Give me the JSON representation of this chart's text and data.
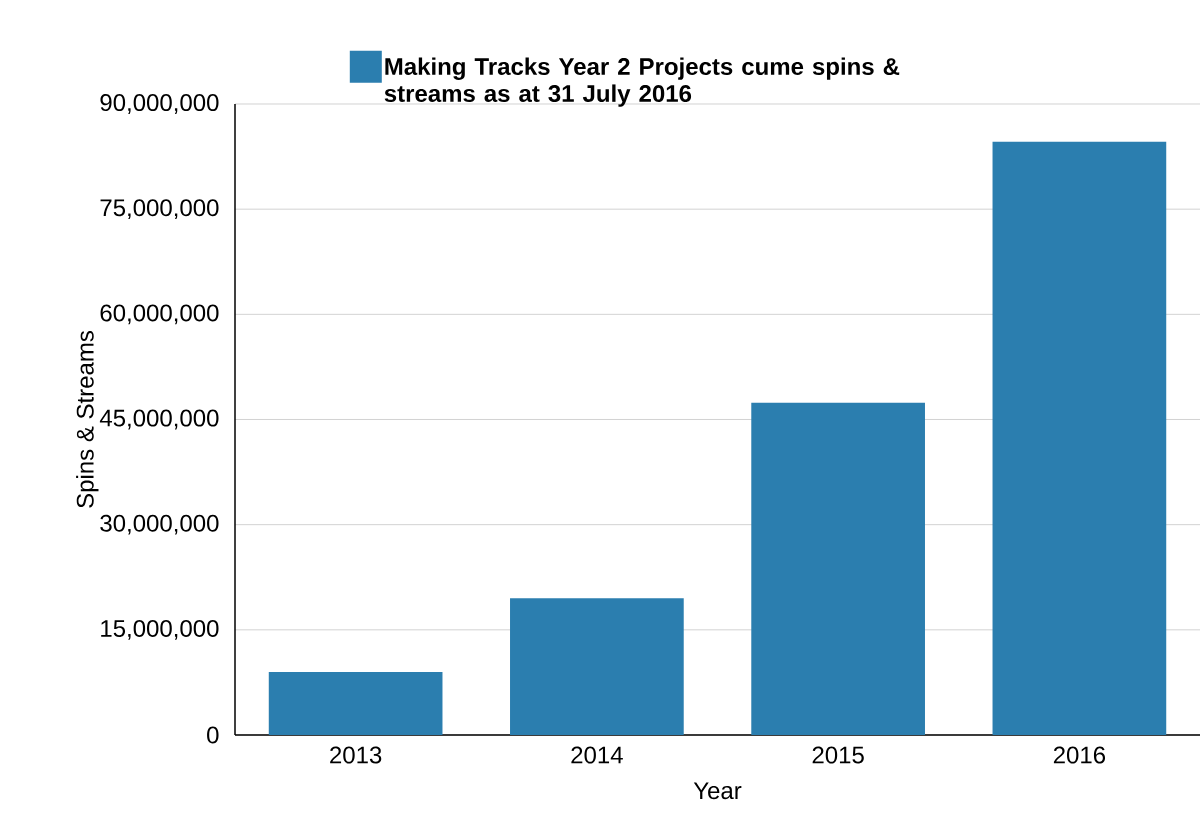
{
  "chart_data": {
    "type": "bar",
    "xlabel": "Year",
    "ylabel": "Spins & Streams",
    "categories": [
      "2013",
      "2014",
      "2015",
      "2016"
    ],
    "series": [
      {
        "name": "Making Tracks Year 2 Projects cume spins & streams as at 31 July 2016",
        "color": "#2b7eaf",
        "values": [
          9000000,
          19500000,
          47400000,
          84600000
        ]
      }
    ],
    "ylim": [
      0,
      90000000
    ],
    "yticks": [
      0,
      {
        "value": 15000000,
        "label": "15,000,000"
      },
      {
        "value": 30000000,
        "label": "30,000,000"
      },
      {
        "value": 45000000,
        "label": "45,000,000"
      },
      {
        "value": 60000000,
        "label": "60,000,000"
      },
      {
        "value": 75000000,
        "label": "75,000,000"
      },
      {
        "value": 90000000,
        "label": "90,000,000"
      }
    ],
    "grid": "y",
    "legend": "top"
  }
}
